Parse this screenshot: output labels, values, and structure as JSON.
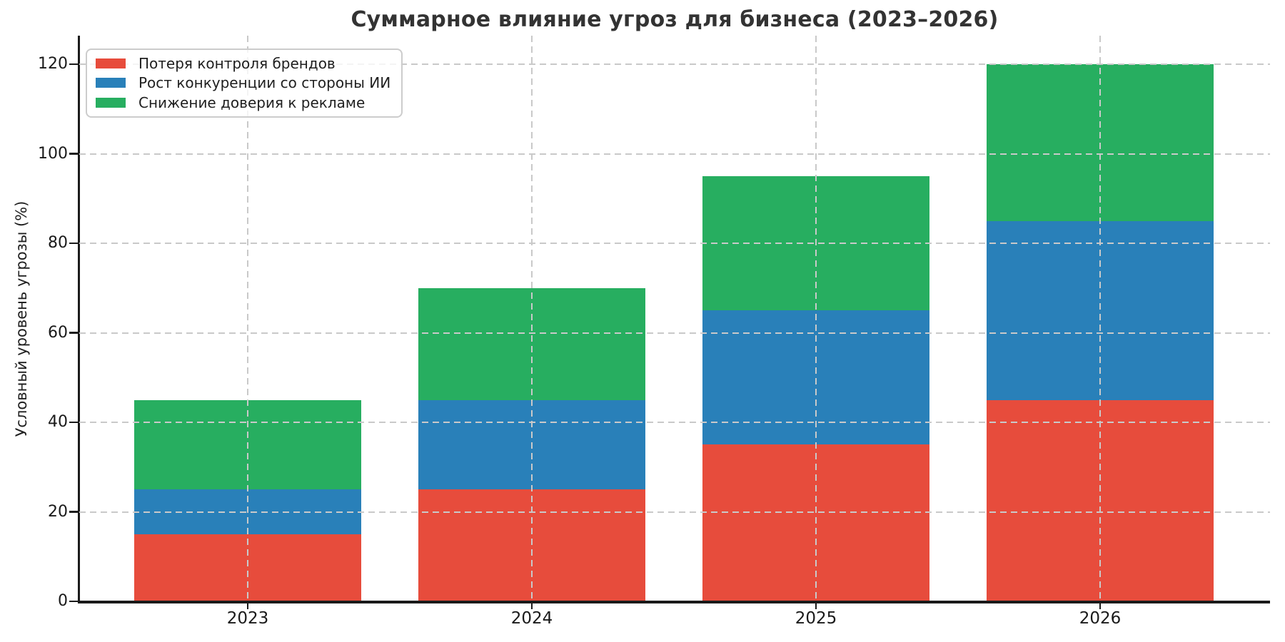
{
  "title": "Суммарное влияние угроз для бизнеса (2023–2026)",
  "chart_data": {
    "type": "bar",
    "stacked": true,
    "title": "Суммарное влияние угроз для бизнеса (2023–2026)",
    "xlabel": "",
    "ylabel": "Условный уровень угрозы (%)",
    "categories": [
      "2023",
      "2024",
      "2025",
      "2026"
    ],
    "series": [
      {
        "name": "Потеря контроля брендов",
        "color": "#e74c3c",
        "values": [
          15,
          25,
          35,
          45
        ]
      },
      {
        "name": "Рост конкуренции со стороны ИИ",
        "color": "#2980b9",
        "values": [
          10,
          20,
          30,
          40
        ]
      },
      {
        "name": "Снижение доверия к рекламе",
        "color": "#27ae60",
        "values": [
          20,
          25,
          30,
          35
        ]
      }
    ],
    "stack_totals": [
      45,
      70,
      95,
      120
    ],
    "ylim": [
      0,
      126
    ],
    "yticks": [
      0,
      20,
      40,
      60,
      80,
      100,
      120
    ],
    "grid": true,
    "grid_style": "dashed",
    "legend_position": "upper-left"
  },
  "colors": {
    "series_red": "#e74c3c",
    "series_blue": "#2980b9",
    "series_green": "#27ae60",
    "axis": "#1a1a1a",
    "grid": "#c9c9c9",
    "title_text": "#333333"
  }
}
